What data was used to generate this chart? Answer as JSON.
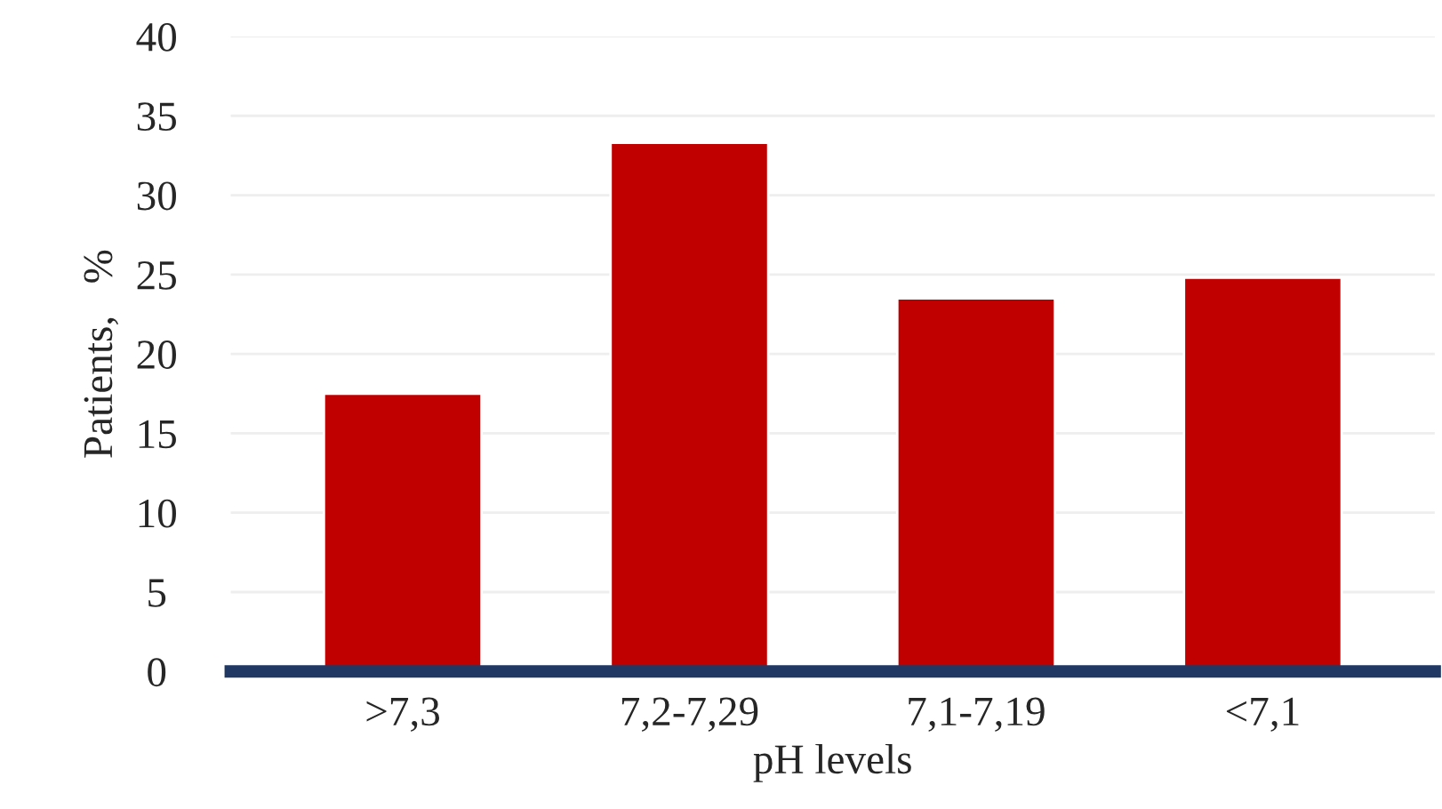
{
  "chart_data": {
    "type": "bar",
    "xlabel": "pH levels",
    "ylabel": "Patients,   %",
    "categories": [
      ">7,3",
      "7,2-7,29",
      "7,1-7,19",
      "<7,1"
    ],
    "values": [
      17.5,
      33.3,
      23.5,
      24.8
    ],
    "color": "#c00000",
    "ylim": [
      0,
      40
    ],
    "yticks": [
      0,
      5,
      10,
      15,
      20,
      25,
      30,
      35,
      40
    ],
    "grid": "y"
  }
}
